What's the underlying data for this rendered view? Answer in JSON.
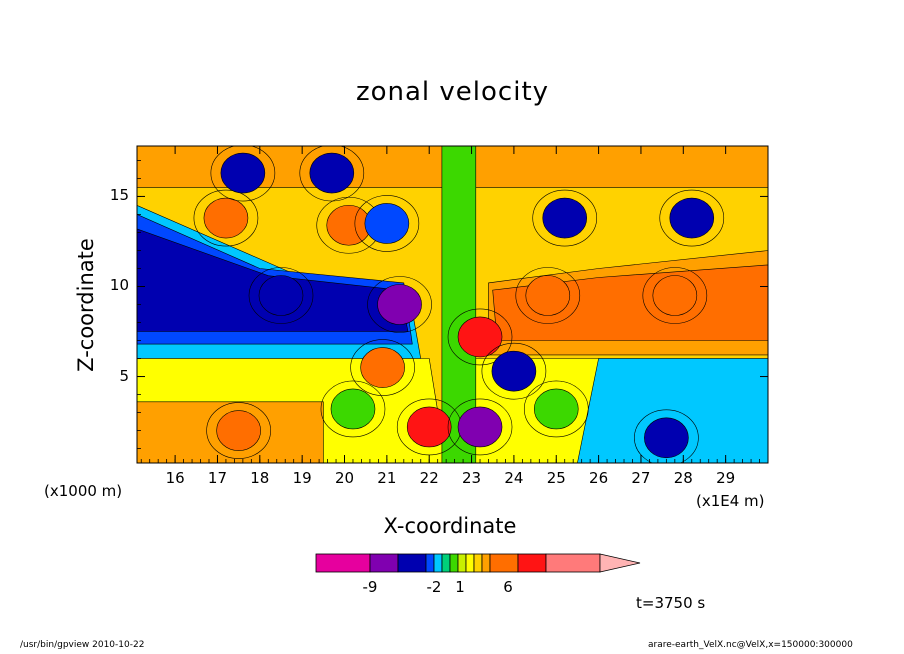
{
  "chart_data": {
    "type": "heatmap",
    "title": "zonal velocity",
    "xlabel": "X-coordinate",
    "ylabel": "Z-coordinate",
    "x_unit": "(x1E4 m)",
    "y_unit": "(x1000 m)",
    "x_ticks": [
      "16",
      "17",
      "18",
      "19",
      "20",
      "21",
      "22",
      "23",
      "24",
      "25",
      "26",
      "27",
      "28",
      "29"
    ],
    "y_ticks": [
      "5",
      "10",
      "15"
    ],
    "xlim": [
      15.1,
      30.0
    ],
    "ylim": [
      0.2,
      17.8
    ],
    "time_label": "t=3750 s",
    "colorbar": {
      "labels": [
        "-9",
        "-2",
        "1",
        "6"
      ],
      "colors": [
        "#e6009e",
        "#8000b0",
        "#0000b0",
        "#0048ff",
        "#00c8ff",
        "#00d07a",
        "#3cd800",
        "#c8f000",
        "#ffff00",
        "#ffd200",
        "#ffa000",
        "#ff6e00",
        "#ff1414",
        "#ff7a7a",
        "#ffb4b4"
      ]
    },
    "features": [
      {
        "x": 17.2,
        "y": 13.8,
        "value": 6,
        "color": "#ff6e00"
      },
      {
        "x": 19.7,
        "y": 16.3,
        "value": -5,
        "color": "#0000b0"
      },
      {
        "x": 17.6,
        "y": 16.3,
        "value": -5,
        "color": "#0000b0"
      },
      {
        "x": 20.1,
        "y": 13.4,
        "value": 6,
        "color": "#ff6e00"
      },
      {
        "x": 21.0,
        "y": 13.5,
        "value": -3,
        "color": "#0048ff"
      },
      {
        "x": 18.5,
        "y": 9.5,
        "value": -6,
        "color": "#0000b0"
      },
      {
        "x": 21.3,
        "y": 9.0,
        "value": -9,
        "color": "#8000b0"
      },
      {
        "x": 22.0,
        "y": 2.2,
        "value": 8,
        "color": "#ff1414"
      },
      {
        "x": 23.2,
        "y": 2.2,
        "value": -9,
        "color": "#8000b0"
      },
      {
        "x": 23.2,
        "y": 7.2,
        "value": 8,
        "color": "#ff1414"
      },
      {
        "x": 24.8,
        "y": 9.5,
        "value": 6,
        "color": "#ff6e00"
      },
      {
        "x": 25.2,
        "y": 13.8,
        "value": -6,
        "color": "#0000b0"
      },
      {
        "x": 28.2,
        "y": 13.8,
        "value": -6,
        "color": "#0000b0"
      },
      {
        "x": 27.8,
        "y": 9.5,
        "value": 6,
        "color": "#ff6e00"
      },
      {
        "x": 24.0,
        "y": 5.3,
        "value": -6,
        "color": "#0000b0"
      },
      {
        "x": 20.9,
        "y": 5.5,
        "value": 5,
        "color": "#ff6e00"
      },
      {
        "x": 27.6,
        "y": 1.6,
        "value": -6,
        "color": "#0000b0"
      },
      {
        "x": 17.5,
        "y": 2.0,
        "value": 6,
        "color": "#ff6e00"
      },
      {
        "x": 20.2,
        "y": 3.2,
        "value": -1,
        "color": "#3cd800"
      },
      {
        "x": 25.0,
        "y": 3.2,
        "value": -1,
        "color": "#3cd800"
      }
    ]
  },
  "footer": {
    "left": "/usr/bin/gpview   2010-10-22",
    "right": "arare-earth_VelX.nc@VelX,x=150000:300000"
  }
}
